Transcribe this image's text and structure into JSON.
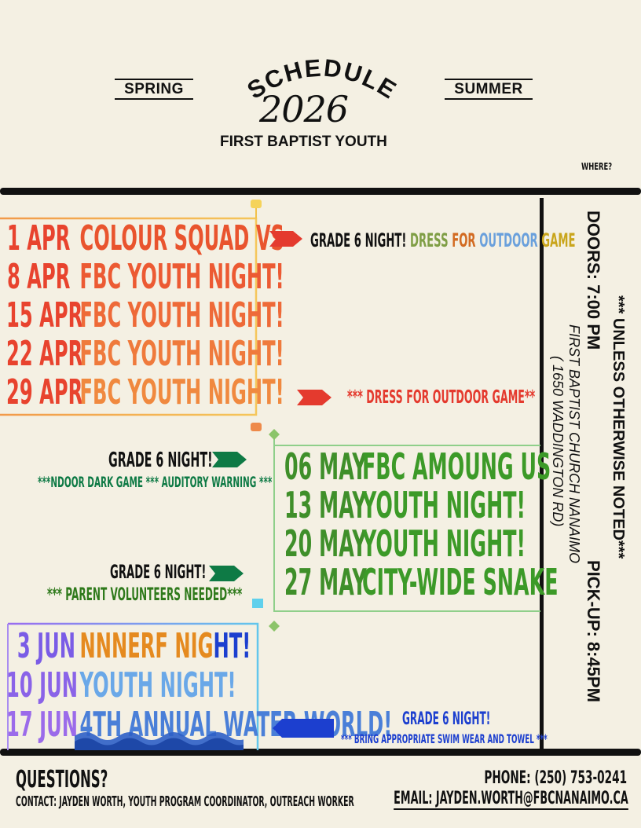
{
  "header": {
    "spring_label": "SPRING",
    "summer_label": "SUMMER",
    "schedule_label": "SCHEDULE",
    "year": "2026",
    "subtitle": "FIRST BAPTIST YOUTH",
    "where_label": "WHERE?"
  },
  "side_info": {
    "notice": "*** UNLESS OTHERWISE NOTED***",
    "doors": "DOORS: 7:00 PM",
    "pickup": "PICK-UP: 8:45PM",
    "venue": "FIRST BAPTIST CHURCH NANAIMO",
    "address": "( 1650 WADDINGTON RD)"
  },
  "april": {
    "rows": [
      {
        "date": "1 APR",
        "event": "COLOUR SQUAD VS"
      },
      {
        "date": "8 APR",
        "event": "FBC YOUTH NIGHT!"
      },
      {
        "date": "15 APR",
        "event": "FBC YOUTH NIGHT!"
      },
      {
        "date": "22 APR",
        "event": "FBC YOUTH NIGHT!"
      },
      {
        "date": "29 APR",
        "event": "FBC YOUTH NIGHT!"
      }
    ],
    "note1": {
      "prefix": "GRADE 6 NIGHT!",
      "w1": "DRESS",
      "w2": "FOR",
      "w3": "OUTDOOR",
      "w4": "GAME"
    },
    "note2": "*** DRESS FOR OUTDOOR GAME**"
  },
  "may": {
    "rows": [
      {
        "date": "06 MAY",
        "event": "FBC AMOUNG US"
      },
      {
        "date": "13 MAY",
        "event": "YOUTH NIGHT!"
      },
      {
        "date": "20 MAY",
        "event": "YOUTH NIGHT!"
      },
      {
        "date": "27 MAY",
        "event": "CITY-WIDE SNAKE"
      }
    ],
    "note1_title": "GRADE 6 NIGHT!",
    "note1_sub": "***NDOOR DARK GAME *** AUDITORY WARNING ***",
    "note2_title": "GRADE 6 NIGHT!",
    "note2_sub": "*** PARENT VOLUNTEERS NEEDED***"
  },
  "june": {
    "rows": [
      {
        "date": "3 JUN",
        "event_a": "NNNERF NIG",
        "event_b": "HT!"
      },
      {
        "date": "10 JUN",
        "event_a": "YOUTH NIGHT!",
        "event_b": ""
      },
      {
        "date": "17 JUN",
        "event_a": "4TH ANNUAL WATER WORLD!",
        "event_b": ""
      }
    ],
    "note_title": "GRADE 6 NIGHT!",
    "note_sub": "*** BRING APPROPRIATE SWIM WEAR AND TOWEL ***"
  },
  "footer": {
    "questions": "QUESTIONS?",
    "contact": "CONTACT: JAYDEN WORTH, YOUTH PROGRAM COORDINATOR, OUTREACH WORKER",
    "phone": "PHONE: (250) 753-0241",
    "email": "EMAIL: JAYDEN.WORTH@FBCNANAIMO.CA"
  },
  "colors": {
    "background": "#f4f0e3",
    "april": "#e8432e",
    "may": "#3f8f2a",
    "june": "#7a5ce6",
    "grade6_green": "#0e7a45",
    "june_note": "#1c3fcf"
  }
}
